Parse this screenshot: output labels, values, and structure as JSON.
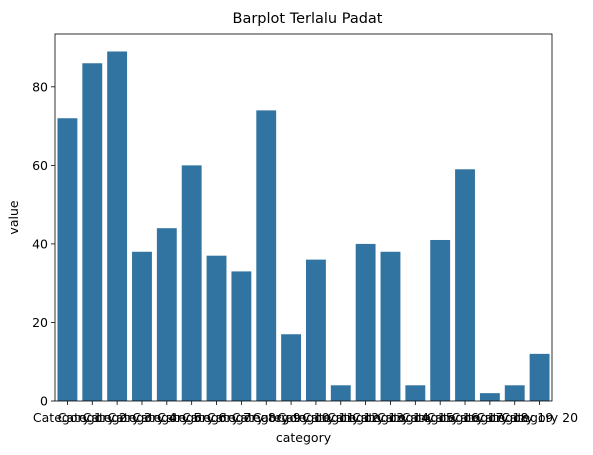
{
  "chart_data": {
    "type": "bar",
    "title": "Barplot Terlalu Padat",
    "xlabel": "category",
    "ylabel": "value",
    "categories": [
      "Category 1",
      "Category 2",
      "Category 3",
      "Category 4",
      "Category 5",
      "Category 6",
      "Category 7",
      "Category 8",
      "Category 9",
      "Category 10",
      "Category 11",
      "Category 12",
      "Category 13",
      "Category 14",
      "Category 15",
      "Category 16",
      "Category 17",
      "Category 18",
      "Category 19",
      "Category 20"
    ],
    "values": [
      72,
      86,
      89,
      38,
      44,
      60,
      37,
      33,
      74,
      17,
      36,
      4,
      40,
      38,
      4,
      41,
      59,
      2,
      4,
      12
    ],
    "ylim": [
      0,
      93.45
    ],
    "yticks": [
      0,
      20,
      40,
      60,
      80
    ],
    "grid": false,
    "colors": {
      "bar": "#3274a1"
    }
  }
}
